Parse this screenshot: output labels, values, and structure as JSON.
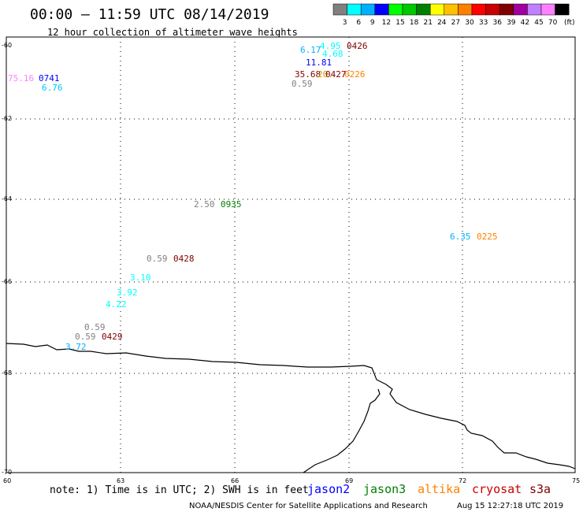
{
  "header": {
    "title": "00:00 – 11:59 UTC 08/14/2019",
    "subtitle": "12 hour collection of altimeter wave heights"
  },
  "colorbar": {
    "colors": [
      "#808080",
      "#00ffff",
      "#00b0ff",
      "#0000ff",
      "#00ff00",
      "#00c800",
      "#008000",
      "#ffff00",
      "#ffc000",
      "#ff8000",
      "#ff0000",
      "#c80000",
      "#800000",
      "#a000a0",
      "#c080ff",
      "#ff80ff",
      "#000000"
    ],
    "labels": [
      "3",
      "6",
      "9",
      "12",
      "15",
      "18",
      "21",
      "24",
      "27",
      "30",
      "33",
      "36",
      "39",
      "42",
      "45",
      "70"
    ],
    "unit": "(ft)"
  },
  "axes": {
    "lat_labels": [
      "-60",
      "-62",
      "-64",
      "-66",
      "-68",
      "-70"
    ],
    "lon_labels": [
      "60",
      "63",
      "66",
      "69",
      "72",
      "75"
    ]
  },
  "observations": [
    {
      "text": "75.16",
      "color": "#ff80ff"
    },
    {
      "text": "0741",
      "color": "#0000ff"
    },
    {
      "text": "6.76",
      "color": "#00c8ff"
    },
    {
      "text": "6.17",
      "color": "#00b0ff"
    },
    {
      "text": "4.95",
      "color": "#00ffff"
    },
    {
      "text": "4.68",
      "color": "#00ffff"
    },
    {
      "text": "0426",
      "color": "#800000"
    },
    {
      "text": "11.81",
      "color": "#0000ff"
    },
    {
      "text": "35.68",
      "color": "#800000"
    },
    {
      "text": "20.",
      "color": "#c8a000"
    },
    {
      "text": "0427",
      "color": "#800000"
    },
    {
      "text": "0226",
      "color": "#ff8000"
    },
    {
      "text": "0.59",
      "color": "#808080"
    },
    {
      "text": "2.50",
      "color": "#808080"
    },
    {
      "text": "0935",
      "color": "#008000"
    },
    {
      "text": "6.35",
      "color": "#00b0ff"
    },
    {
      "text": "0225",
      "color": "#ff8000"
    },
    {
      "text": "0.59",
      "color": "#808080"
    },
    {
      "text": "0428",
      "color": "#800000"
    },
    {
      "text": "3.10",
      "color": "#00ffff"
    },
    {
      "text": "3.92",
      "color": "#00ffff"
    },
    {
      "text": "4.22",
      "color": "#00ffff"
    },
    {
      "text": "0.59",
      "color": "#808080"
    },
    {
      "text": "0.59",
      "color": "#808080"
    },
    {
      "text": "0429",
      "color": "#800000"
    },
    {
      "text": "3.72",
      "color": "#00b0ff"
    }
  ],
  "note": "note: 1) Time is in UTC; 2) SWH is in feet",
  "satellites": [
    {
      "name": "jason2",
      "color": "#0000ff"
    },
    {
      "name": "jason3",
      "color": "#008000"
    },
    {
      "name": "altika",
      "color": "#ff8000"
    },
    {
      "name": "cryosat",
      "color": "#c80000"
    },
    {
      "name": "s3a",
      "color": "#800000"
    }
  ],
  "footer": {
    "credit": "NOAA/NESDIS Center for Satellite Applications and Research",
    "timestamp": "Aug 15 12:27:18 UTC 2019"
  }
}
